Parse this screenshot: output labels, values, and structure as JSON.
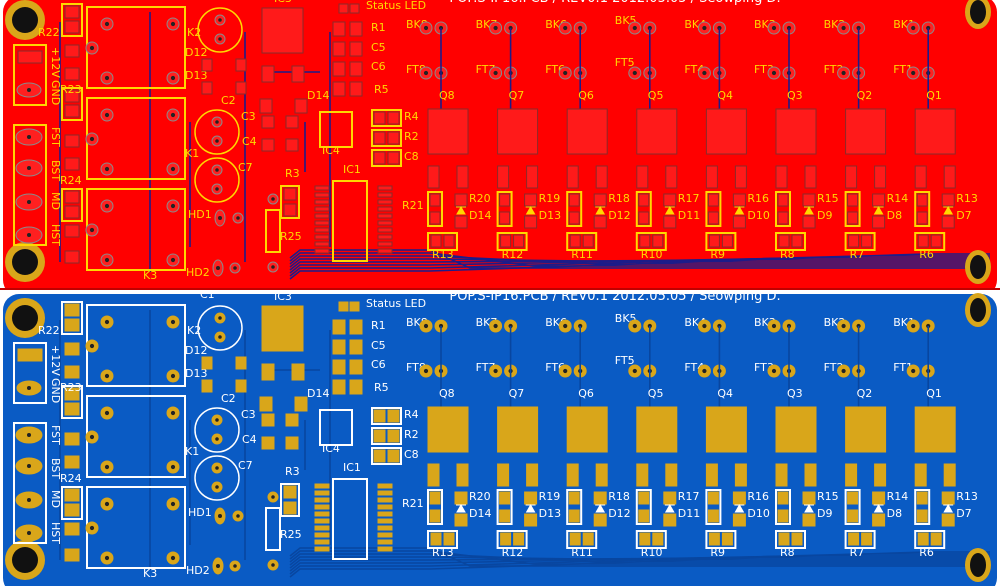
{
  "title": "POP.S-IP16.PCB / REV0.1 2012.05.05 / Seowping D.",
  "views": [
    {
      "name": "top-layer",
      "board_color": "#ff0000",
      "trace_color": "#1c1c8a",
      "silk_color": "#ffd800",
      "pad_color": "#ff1a1a",
      "pad_stroke": "#8a2a2a"
    },
    {
      "name": "bottom-layer",
      "board_color": "#0a5bc4",
      "trace_color": "#0846a0",
      "silk_color": "#ffffff",
      "pad_color": "#d9a61a",
      "pad_stroke": "#d9a61a"
    }
  ],
  "channels": [
    {
      "bk": "BK8",
      "ft": "FT8",
      "q": "Q8",
      "r_top": "R20",
      "d": "D14",
      "r_bot": "R13"
    },
    {
      "bk": "BK7",
      "ft": "FT7",
      "q": "Q7",
      "r_top": "R19",
      "d": "D13",
      "r_bot": "R12"
    },
    {
      "bk": "BK6",
      "ft": "FT6",
      "q": "Q6",
      "r_top": "R18",
      "d": "D12",
      "r_bot": "R11"
    },
    {
      "bk": "BK5",
      "ft": "FT5",
      "q": "Q5",
      "r_top": "R17",
      "d": "D11",
      "r_bot": "R10"
    },
    {
      "bk": "BK4",
      "ft": "FT4",
      "q": "Q4",
      "r_top": "R16",
      "d": "D10",
      "r_bot": "R9"
    },
    {
      "bk": "BK3",
      "ft": "FT3",
      "q": "Q3",
      "r_top": "R15",
      "d": "D9",
      "r_bot": "R8"
    },
    {
      "bk": "BK2",
      "ft": "FT2",
      "q": "Q2",
      "r_top": "R14",
      "d": "D8",
      "r_bot": "R7"
    },
    {
      "bk": "BK1",
      "ft": "FT1",
      "q": "Q1",
      "r_top": "R13",
      "d": "D7",
      "r_bot": "R6"
    }
  ],
  "labels": {
    "status_led": "Status LED",
    "r1": "R1",
    "c5": "C5",
    "c6": "C6",
    "r5": "R5",
    "r4": "R4",
    "r2": "R2",
    "c8": "C8",
    "r21": "R21",
    "ic1": "IC1",
    "ic3": "IC3",
    "ic4": "IC4",
    "r22": "R22",
    "r23": "R23",
    "r24": "R24",
    "r3": "R3",
    "r25": "R25",
    "k1": "K1",
    "k2": "K2",
    "k3": "K3",
    "c1": "C1",
    "c2": "C2",
    "c3": "C3",
    "c4": "C4",
    "c7": "C7",
    "d12": "D12",
    "d13": "D13",
    "d14": "D14",
    "hd1": "HD1",
    "hd2": "HD2",
    "p12v": "+12V",
    "gnd": "GND",
    "fst": "FST",
    "bst": "BST",
    "md": "MD",
    "hst": "HST"
  }
}
